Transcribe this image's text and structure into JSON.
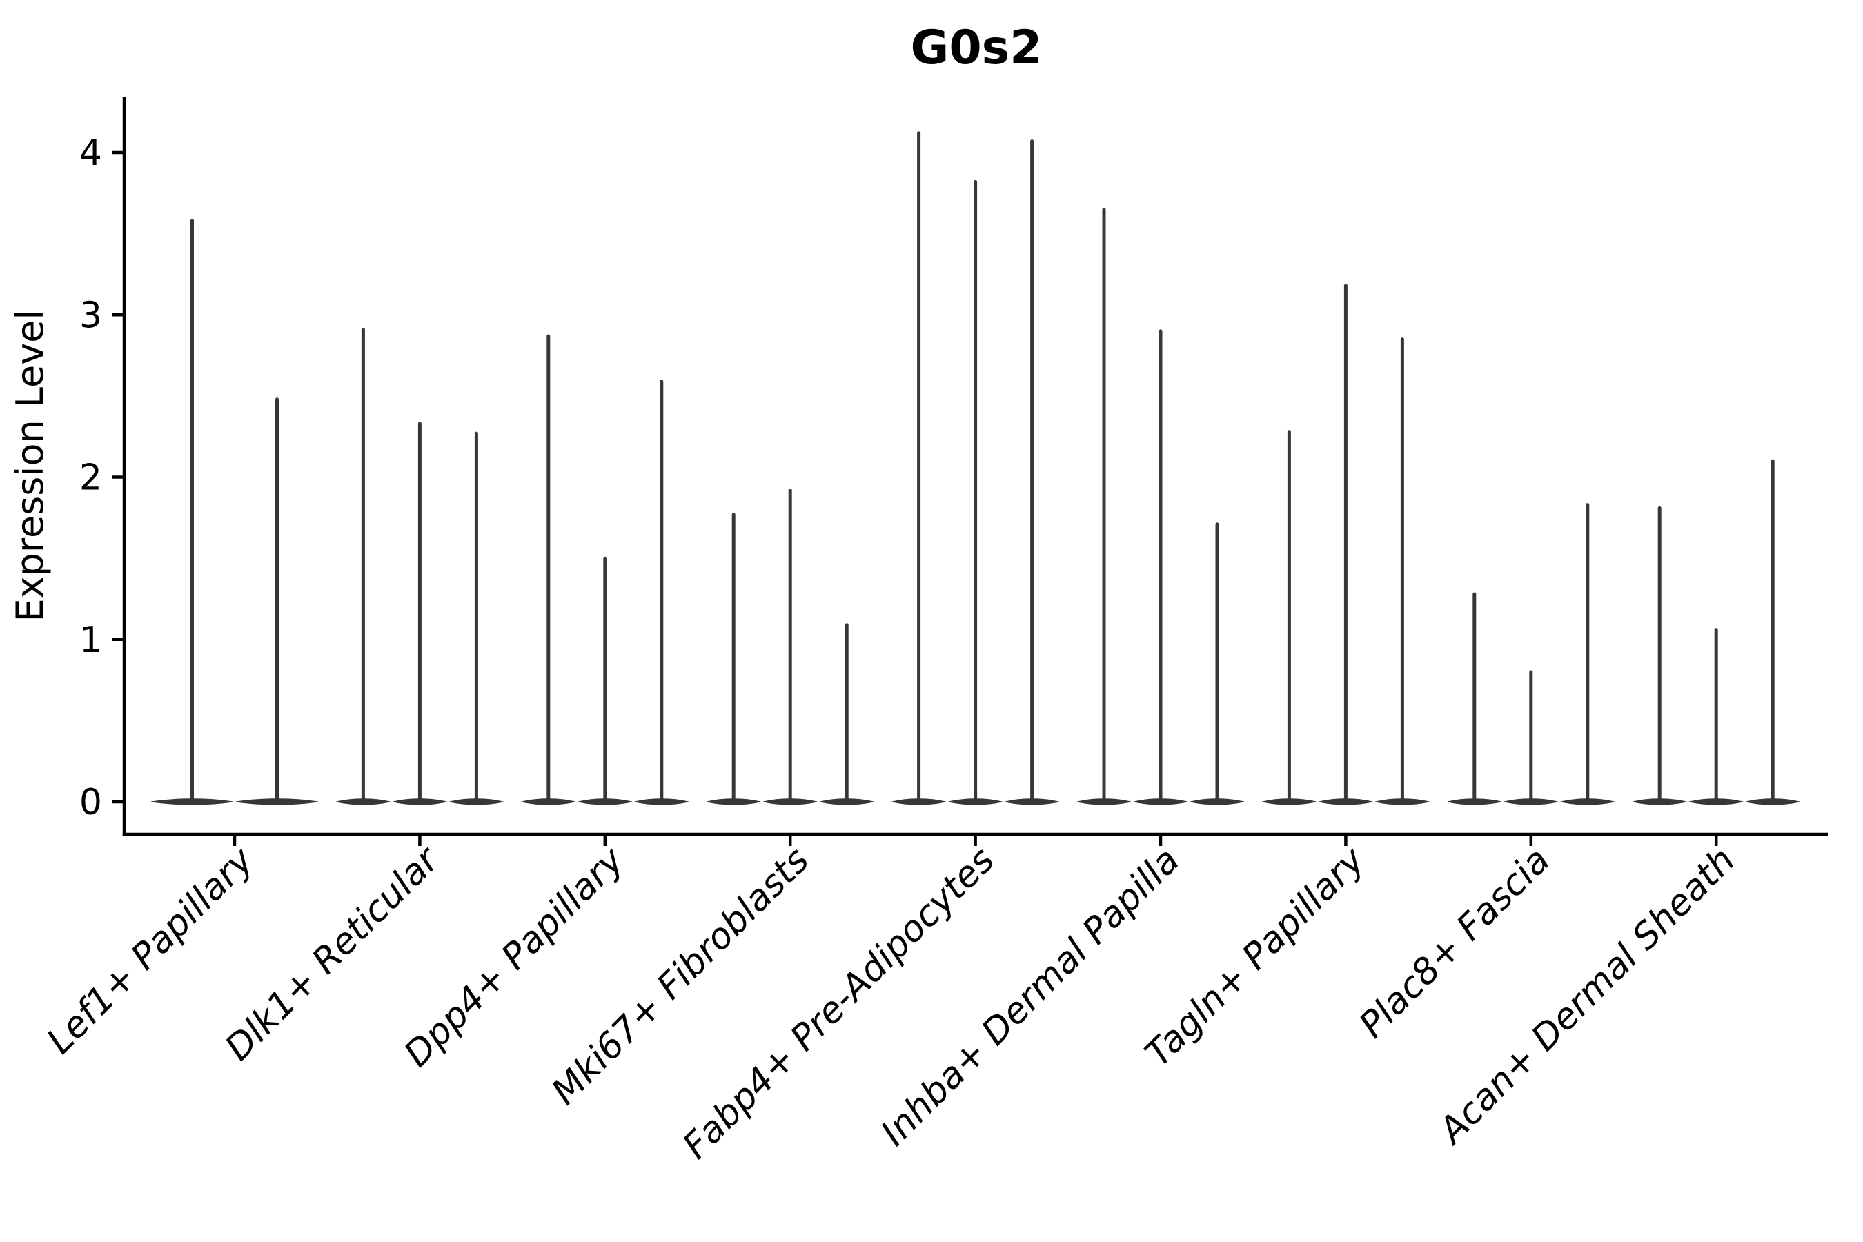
{
  "title": "G0s2",
  "ylabel": "Expression Level",
  "colors": {
    "background": "#ffffff",
    "axis": "#000000",
    "violin": "#373737",
    "text": "#000000"
  },
  "chart_data": {
    "type": "violin",
    "title": "G0s2",
    "xlabel": "",
    "ylabel": "Expression Level",
    "ytick_labels": [
      "0",
      "1",
      "2",
      "3",
      "4"
    ],
    "ytick_values": [
      0,
      1,
      2,
      3,
      4
    ],
    "ylim": [
      -0.2,
      4.34
    ],
    "grid": false,
    "legend": "none",
    "x_tick_rotation_degrees": 45,
    "description": "Violin plot of G0s2 expression; each category holds narrow spike-shaped violins (most mass at 0, thin spike to max expression).",
    "categories": [
      "Lef1+ Papillary",
      "Dlk1+ Reticular",
      "Dpp4+ Papillary",
      "Mki67+ Fibroblasts",
      "Fabp4+ Pre-Adipocytes",
      "Inhba+ Dermal Papilla",
      "Tagln+ Papillary",
      "Plac8+ Fascia",
      "Acan+ Dermal Sheath"
    ],
    "groups": [
      {
        "label": "Lef1+ Papillary",
        "violin_max_values": [
          3.59,
          2.49
        ]
      },
      {
        "label": "Dlk1+ Reticular",
        "violin_max_values": [
          2.92,
          2.34,
          2.28
        ]
      },
      {
        "label": "Dpp4+ Papillary",
        "violin_max_values": [
          2.88,
          1.51,
          2.6
        ]
      },
      {
        "label": "Mki67+ Fibroblasts",
        "violin_max_values": [
          1.78,
          1.93,
          1.1
        ]
      },
      {
        "label": "Fabp4+ Pre-Adipocytes",
        "violin_max_values": [
          4.13,
          3.83,
          4.08
        ]
      },
      {
        "label": "Inhba+ Dermal Papilla",
        "violin_max_values": [
          3.66,
          2.91,
          1.72
        ]
      },
      {
        "label": "Tagln+ Papillary",
        "violin_max_values": [
          2.29,
          3.19,
          2.86
        ]
      },
      {
        "label": "Plac8+ Fascia",
        "violin_max_values": [
          1.29,
          0.81,
          1.84
        ]
      },
      {
        "label": "Acan+ Dermal Sheath",
        "violin_max_values": [
          1.82,
          1.07,
          2.11
        ]
      }
    ]
  }
}
